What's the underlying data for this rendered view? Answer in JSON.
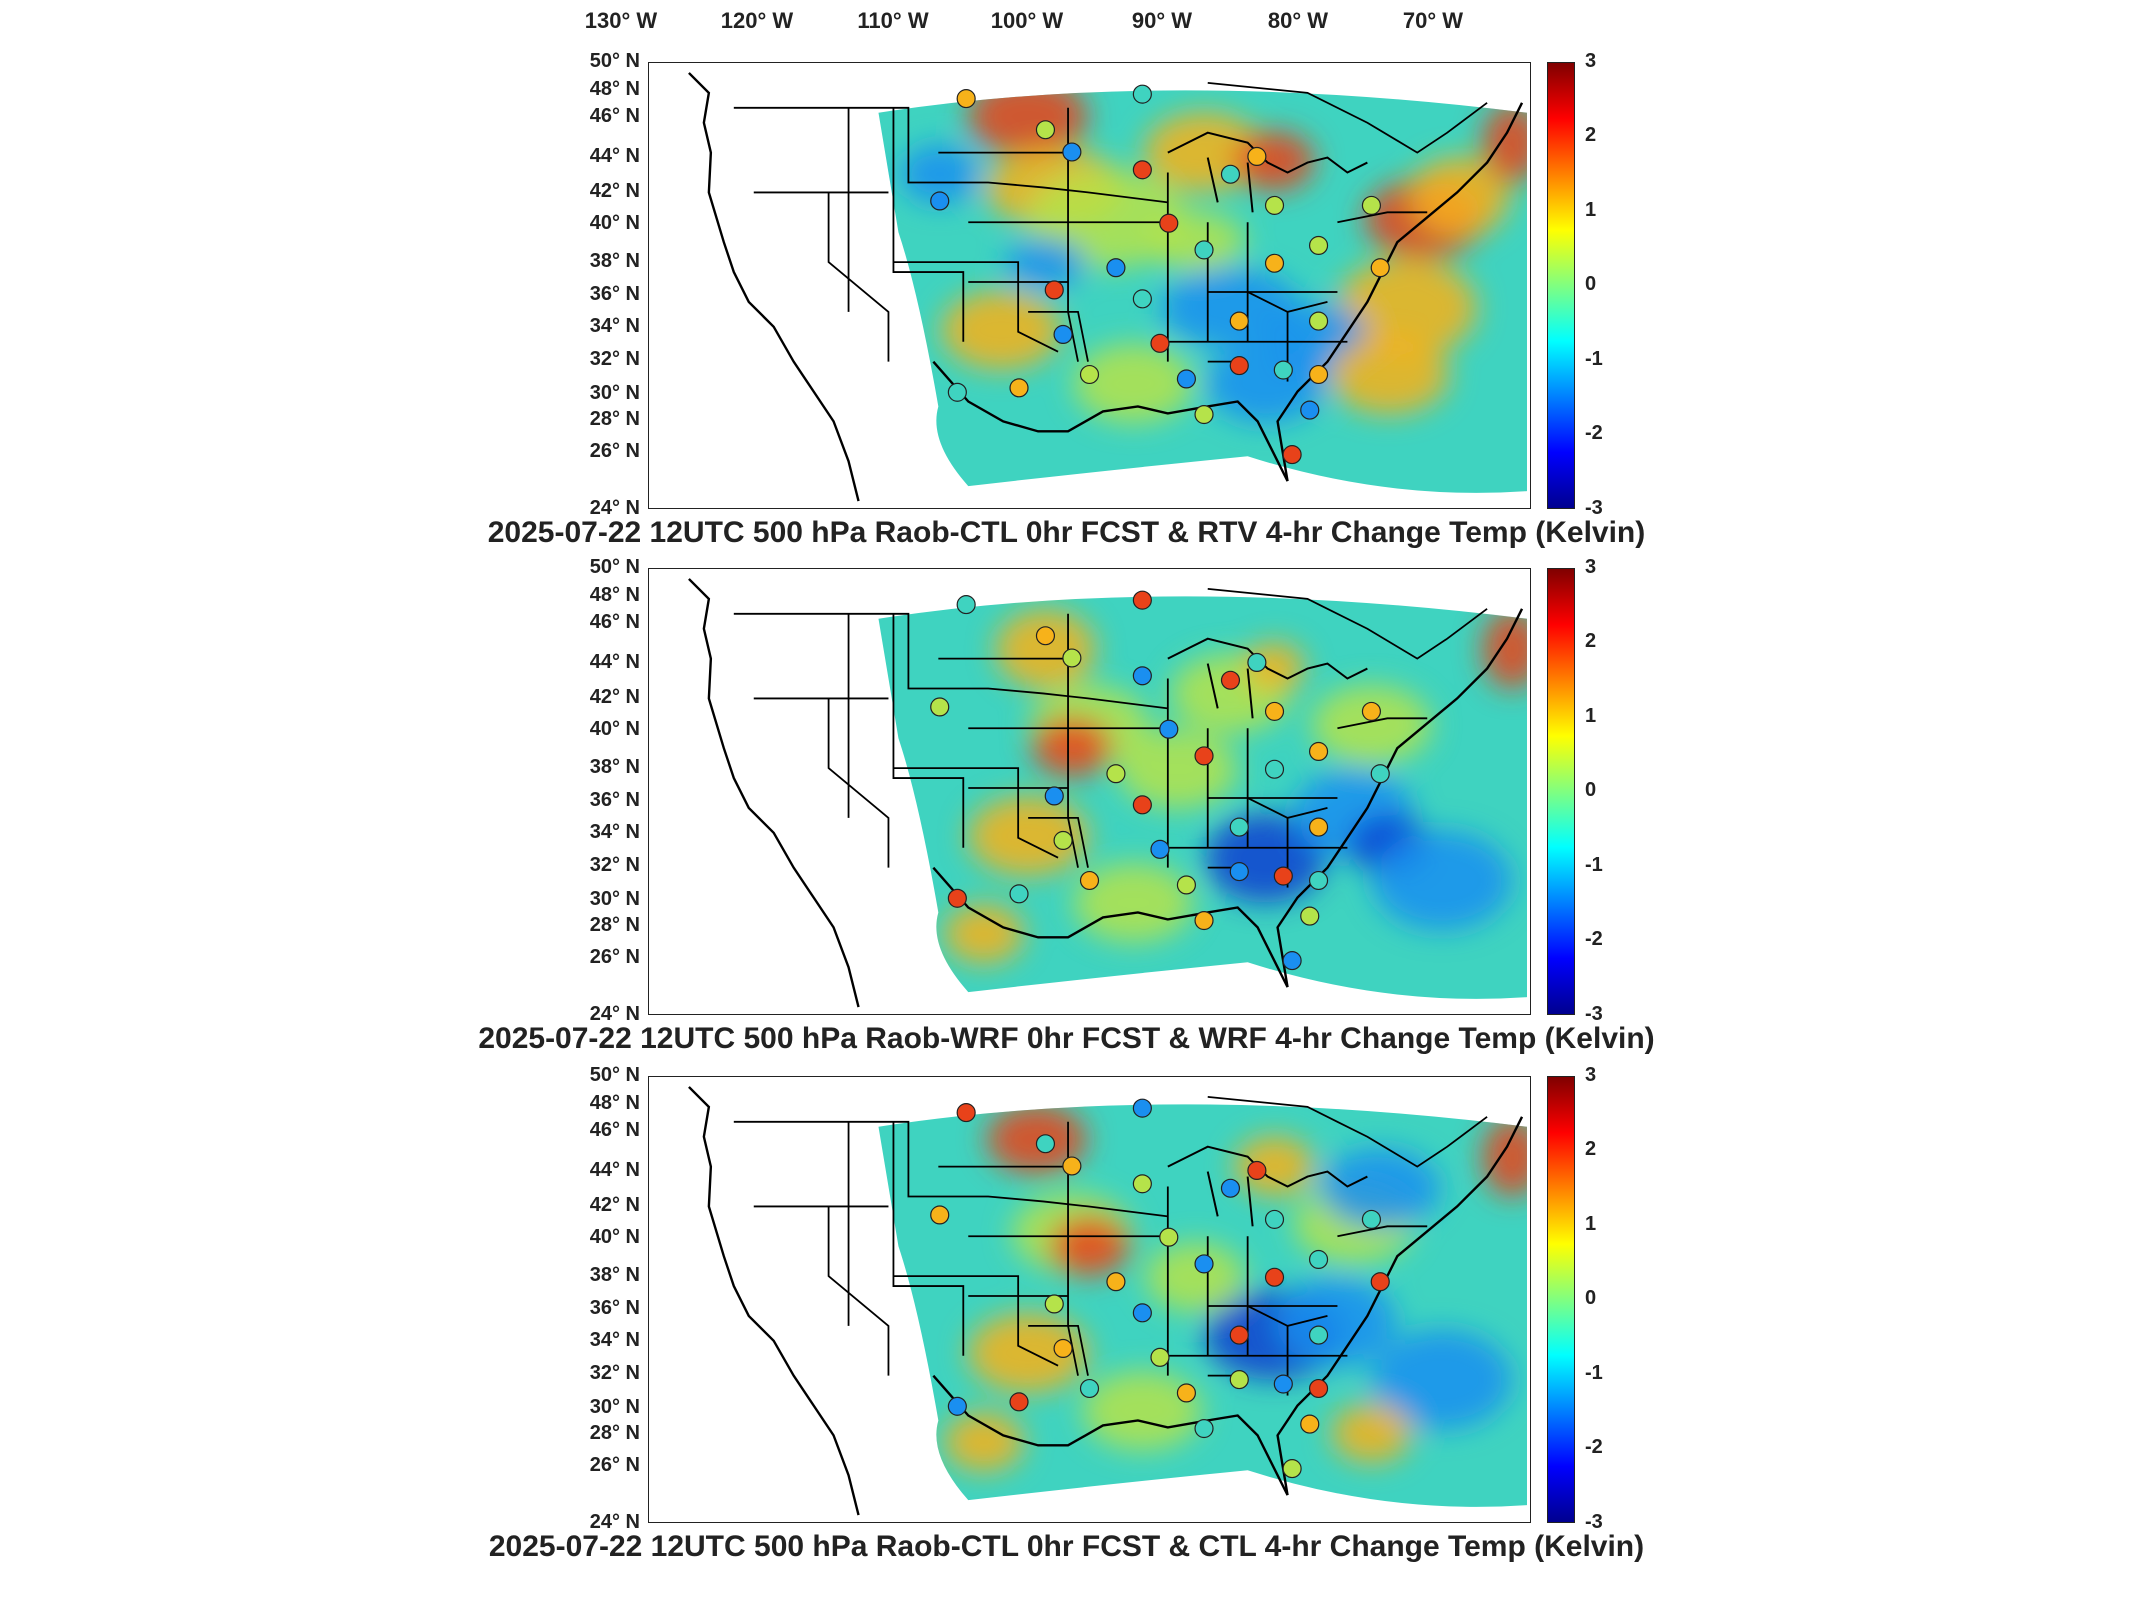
{
  "map": {
    "lon_ticks": [
      "130° W",
      "120° W",
      "110° W",
      "100° W",
      "90° W",
      "80° W",
      "70° W"
    ],
    "lat_ticks": [
      "50° N",
      "48° N",
      "46° N",
      "44° N",
      "42° N",
      "40° N",
      "38° N",
      "36° N",
      "34° N",
      "32° N",
      "30° N",
      "28° N",
      "26° N",
      "24° N"
    ],
    "colorbar_ticks": [
      "3",
      "2",
      "1",
      "0",
      "-1",
      "-2",
      "-3"
    ],
    "colorbar_range": [
      -3,
      3
    ],
    "colormap": "jet",
    "colors": {
      "field_background": "#3fd3c0",
      "warm": "#f7b21a",
      "hot": "#e8421a",
      "cool": "#1a8ff0",
      "cold": "#0a3fd0",
      "mild": "#b5e34a",
      "border_lines": "#000000"
    },
    "station_marker": "circle"
  },
  "panels": [
    {
      "title": "2025-07-22 12UTC 500 hPa Raob-CTL 0hr FCST & RTV 4-hr Change Temp (Kelvin)"
    },
    {
      "title": "2025-07-22 12UTC 500 hPa Raob-WRF 0hr FCST & WRF 4-hr Change Temp (Kelvin)"
    },
    {
      "title": "2025-07-22 12UTC 500 hPa Raob-CTL 0hr FCST & CTL 4-hr Change Temp (Kelvin)"
    }
  ]
}
